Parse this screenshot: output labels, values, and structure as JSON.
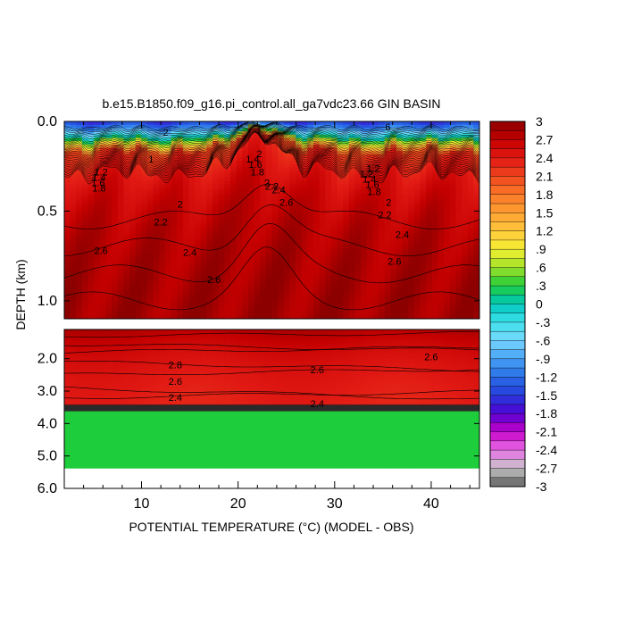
{
  "chart_data": {
    "type": "heatmap",
    "title": "b.e15.B1850.f09_g16.pi_control.all_ga7vdc23.66 GIN BASIN",
    "xlabel": "POTENTIAL TEMPERATURE (°C) (MODEL - OBS)",
    "ylabel": "DEPTH (km)",
    "xlim": [
      2,
      45
    ],
    "x_ticks": [
      10,
      20,
      30,
      40
    ],
    "x_tick_labels": [
      "10",
      "20",
      "30",
      "40"
    ],
    "upper_panel": {
      "ylim": [
        0.0,
        1.1
      ],
      "y_ticks": [
        0.0,
        0.5,
        1.0
      ],
      "y_tick_labels": [
        "0.0",
        "0.5",
        "1.0"
      ]
    },
    "lower_panel": {
      "ylim": [
        1.1,
        6.0
      ],
      "y_ticks": [
        2.0,
        3.0,
        4.0,
        5.0,
        6.0
      ],
      "y_tick_labels": [
        "2.0",
        "3.0",
        "4.0",
        "5.0",
        "6.0"
      ]
    },
    "colorbar": {
      "min": -3,
      "max": 3,
      "step": 0.15,
      "tick_values": [
        3,
        2.7,
        2.4,
        2.1,
        1.8,
        1.5,
        1.2,
        0.9,
        0.6,
        0.3,
        0,
        -0.3,
        -0.6,
        -0.9,
        -1.2,
        -1.5,
        -1.8,
        -2.1,
        -2.4,
        -2.7,
        -3
      ],
      "tick_labels": [
        "3",
        "2.7",
        "2.4",
        "2.1",
        "1.8",
        "1.5",
        "1.2",
        ".9",
        ".6",
        ".3",
        "0",
        "-.3",
        "-.6",
        "-.9",
        "-1.2",
        "-1.5",
        "-1.8",
        "-2.1",
        "-2.4",
        "-2.7",
        "-3"
      ]
    },
    "contour_labels": [
      {
        "text": "1.2",
        "x": 5.8,
        "y": 0.3
      },
      {
        "text": "1.4",
        "x": 5.6,
        "y": 0.33
      },
      {
        "text": "1.6",
        "x": 5.5,
        "y": 0.36
      },
      {
        "text": "1.8",
        "x": 5.6,
        "y": 0.39
      },
      {
        "text": "2",
        "x": 14.0,
        "y": 0.48
      },
      {
        "text": "2.2",
        "x": 12.0,
        "y": 0.58
      },
      {
        "text": "2.6",
        "x": 5.8,
        "y": 0.74
      },
      {
        "text": "2.4",
        "x": 15.0,
        "y": 0.75
      },
      {
        "text": "2.6",
        "x": 17.5,
        "y": 0.9
      },
      {
        "text": "1",
        "x": 11.0,
        "y": 0.23
      },
      {
        "text": "2",
        "x": 12.5,
        "y": 0.08
      },
      {
        "text": "2",
        "x": 22.2,
        "y": 0.2
      },
      {
        "text": "1.4",
        "x": 21.5,
        "y": 0.23
      },
      {
        "text": "1.6",
        "x": 21.8,
        "y": 0.26
      },
      {
        "text": "1.8",
        "x": 22.0,
        "y": 0.3
      },
      {
        "text": "2",
        "x": 23.0,
        "y": 0.36
      },
      {
        "text": "2.2",
        "x": 23.5,
        "y": 0.38
      },
      {
        "text": "2.4",
        "x": 24.2,
        "y": 0.4
      },
      {
        "text": "2.6",
        "x": 25.0,
        "y": 0.47
      },
      {
        "text": "1.2",
        "x": 33.3,
        "y": 0.31
      },
      {
        "text": "1.4",
        "x": 33.6,
        "y": 0.34
      },
      {
        "text": "1.6",
        "x": 33.9,
        "y": 0.37
      },
      {
        "text": "1.8",
        "x": 34.1,
        "y": 0.41
      },
      {
        "text": "2",
        "x": 35.6,
        "y": 0.47
      },
      {
        "text": "2.2",
        "x": 35.2,
        "y": 0.54
      },
      {
        "text": "2.4",
        "x": 37.0,
        "y": 0.65
      },
      {
        "text": "2.6",
        "x": 36.2,
        "y": 0.8
      },
      {
        "text": "1.2",
        "x": 34.0,
        "y": 0.28
      },
      {
        "text": "6",
        "x": 35.5,
        "y": 0.05
      },
      {
        "text": "2.8",
        "x": 13.5,
        "y": 2.3
      },
      {
        "text": "2.6",
        "x": 13.5,
        "y": 2.8
      },
      {
        "text": "2.4",
        "x": 13.5,
        "y": 3.3
      },
      {
        "text": "2.6",
        "x": 28.2,
        "y": 2.45
      },
      {
        "text": "2.4",
        "x": 28.2,
        "y": 3.5
      },
      {
        "text": "2.6",
        "x": 40.0,
        "y": 2.05
      }
    ]
  }
}
